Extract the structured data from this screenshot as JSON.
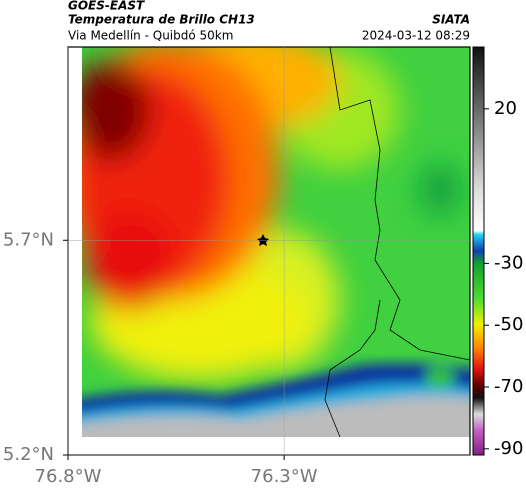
{
  "header": {
    "satellite": "GOES-EAST",
    "product": "Temperatura de Brillo CH13",
    "region": "Via Medellín - Quibdó 50km",
    "source": "SIATA",
    "timestamp": "2024-03-12 08:29"
  },
  "map": {
    "xlim": [
      -76.8,
      -75.87
    ],
    "ylim": [
      5.2,
      6.15
    ],
    "xticks": [
      {
        "value": -76.8,
        "label": "76.8°W"
      },
      {
        "value": -76.3,
        "label": "76.3°W"
      }
    ],
    "yticks": [
      {
        "value": 5.2,
        "label": "5.2°N"
      },
      {
        "value": 5.7,
        "label": "5.7°N"
      }
    ],
    "grid": true
  },
  "colorbar": {
    "vlim": [
      -92,
      40
    ],
    "ticks": [
      20,
      -30,
      -50,
      -70,
      -90
    ]
  }
}
